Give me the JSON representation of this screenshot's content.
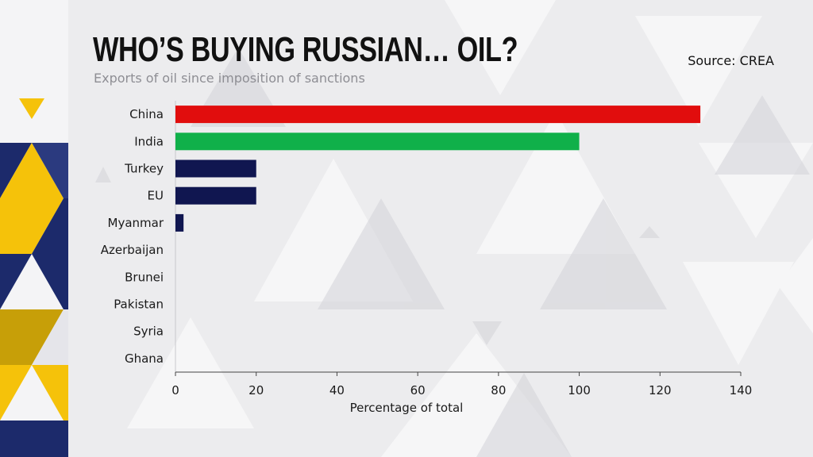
{
  "header": {
    "title": "WHO’S BUYING RUSSIAN… OIL?",
    "subtitle": "Exports of oil since imposition of sanctions",
    "source": "Source: CREA"
  },
  "colors": {
    "china": "#e10d0d",
    "india": "#10b04a",
    "default": "#101650",
    "accent_yellow": "#f5c20a",
    "accent_navy": "#1c2a6b"
  },
  "chart_data": {
    "type": "bar",
    "orientation": "horizontal",
    "categories": [
      "China",
      "India",
      "Turkey",
      "EU",
      "Myanmar",
      "Azerbaijan",
      "Brunei",
      "Pakistan",
      "Syria",
      "Ghana"
    ],
    "values": [
      130,
      100,
      20,
      20,
      2,
      0,
      0,
      0,
      0,
      0
    ],
    "bar_colors": [
      "#e10d0d",
      "#10b04a",
      "#101650",
      "#101650",
      "#101650",
      "#101650",
      "#101650",
      "#101650",
      "#101650",
      "#101650"
    ],
    "xlabel": "Percentage of total",
    "ylabel": "",
    "xlim": [
      0,
      140
    ],
    "xticks": [
      0,
      20,
      40,
      60,
      80,
      100,
      120,
      140
    ],
    "grid": false
  }
}
